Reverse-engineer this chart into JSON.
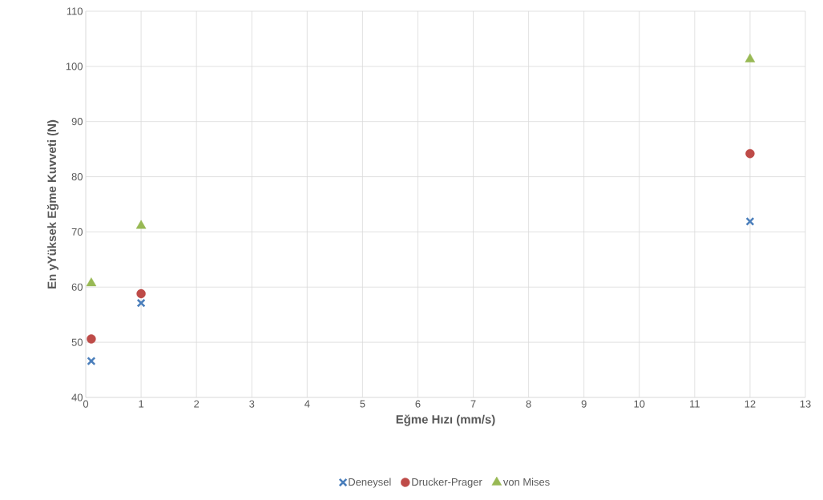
{
  "chart_data": {
    "type": "scatter",
    "xlabel": "Eğme Hızı (mm/s)",
    "ylabel": "En yYüksek Eğme Kuvveti (N)",
    "x": [
      0.1,
      1,
      12
    ],
    "series": [
      {
        "name": "Deneysel",
        "color": "#4a7ebb",
        "marker": "cross",
        "values": [
          46.6,
          57.1,
          71.9
        ]
      },
      {
        "name": "Drucker-Prager",
        "color": "#be4b48",
        "marker": "circle",
        "values": [
          50.6,
          58.8,
          84.2
        ]
      },
      {
        "name": "von Mises",
        "color": "#98b954",
        "marker": "triangle",
        "values": [
          60.7,
          71.1,
          101.3
        ]
      }
    ],
    "xlim": [
      0,
      13
    ],
    "xticks": [
      0,
      1,
      2,
      3,
      4,
      5,
      6,
      7,
      8,
      9,
      10,
      11,
      12,
      13
    ],
    "ylim": [
      40,
      110
    ],
    "yticks": [
      40,
      50,
      60,
      70,
      80,
      90,
      100,
      110
    ],
    "grid": true,
    "legend": "bottom"
  }
}
